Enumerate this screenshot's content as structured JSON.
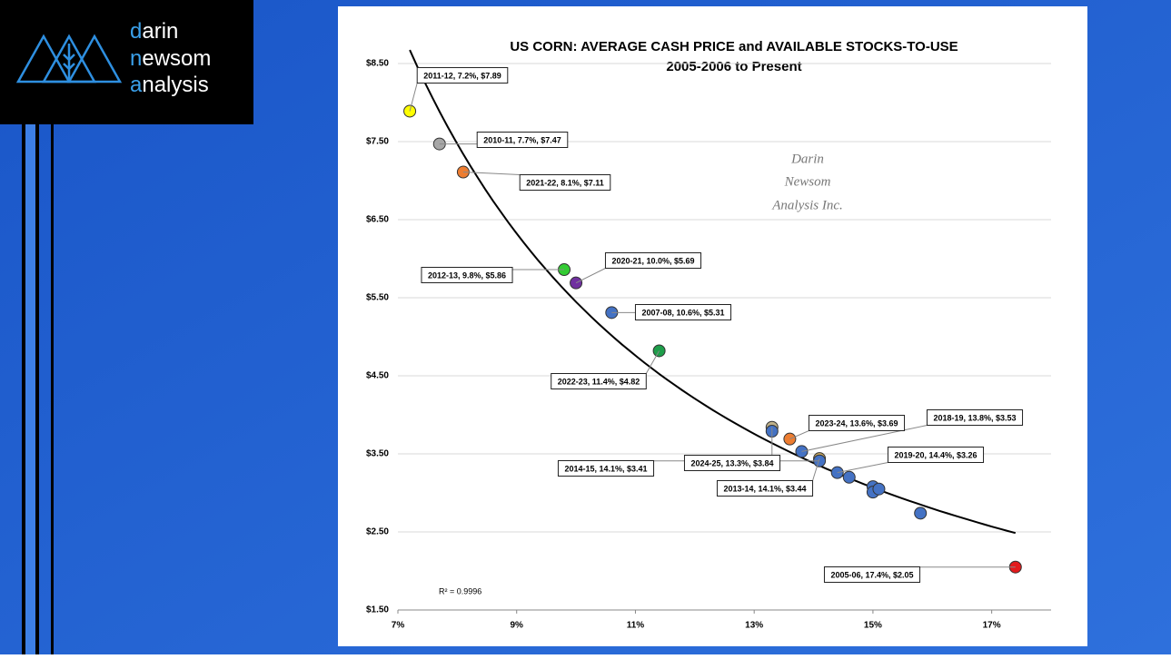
{
  "logo": {
    "lines": [
      "darin",
      "newsom",
      "analysis"
    ]
  },
  "chart_data": {
    "type": "scatter",
    "title": "US CORN: AVERAGE CASH PRICE and AVAILABLE STOCKS-TO-USE",
    "subtitle": "2005-2006 to Present",
    "watermark": [
      "Darin",
      "Newsom",
      "Analysis Inc."
    ],
    "annotation": "R² = 0.9996",
    "trendline": "power",
    "grid": true,
    "x": [
      17.4,
      10.6,
      7.7,
      7.2,
      9.8,
      14.1,
      14.1,
      13.8,
      14.4,
      10.0,
      8.1,
      11.4,
      13.6,
      13.3,
      13.3,
      14.6,
      15.0,
      15.0,
      15.1,
      15.8
    ],
    "values": [
      2.05,
      5.31,
      7.47,
      7.89,
      5.86,
      3.44,
      3.41,
      3.53,
      3.26,
      5.69,
      7.11,
      4.82,
      3.69,
      3.84,
      3.79,
      3.2,
      3.08,
      3.01,
      3.05,
      2.74
    ],
    "colors": [
      "#e31a1c",
      "#4472c4",
      "#a6a6a6",
      "#ffff00",
      "#33cc33",
      "#c9a860",
      "#4472c4",
      "#4472c4",
      "#4472c4",
      "#7030a0",
      "#ed7d31",
      "#1e9e4a",
      "#ed7d31",
      "#bfb18a",
      "#4472c4",
      "#4472c4",
      "#4472c4",
      "#4472c4",
      "#4472c4",
      "#4472c4"
    ],
    "labels": [
      "2005-06, 17.4%, $2.05",
      "2007-08, 10.6%, $5.31",
      "2010-11, 7.7%, $7.47",
      "2011-12, 7.2%, $7.89",
      "2012-13, 9.8%, $5.86",
      "2013-14, 14.1%, $3.44",
      "2014-15, 14.1%, $3.41",
      "2018-19, 13.8%, $3.53",
      "2019-20, 14.4%, $3.26",
      "2020-21, 10.0%, $5.69",
      "2021-22, 8.1%, $7.11",
      "2022-23, 11.4%, $4.82",
      "2023-24, 13.6%, $3.69",
      "2024-25, 13.3%, $3.84",
      null,
      null,
      null,
      null,
      null,
      null
    ],
    "xlim": [
      7,
      18
    ],
    "xticks": [
      {
        "value": 7,
        "label": "7%"
      },
      {
        "value": 9,
        "label": "9%"
      },
      {
        "value": 11,
        "label": "11%"
      },
      {
        "value": 13,
        "label": "13%"
      },
      {
        "value": 15,
        "label": "15%"
      },
      {
        "value": 17,
        "label": "17%"
      }
    ],
    "ylim": [
      1.5,
      8.5
    ],
    "yticks": [
      {
        "value": 1.5,
        "label": "$1.50"
      },
      {
        "value": 2.5,
        "label": "$2.50"
      },
      {
        "value": 3.5,
        "label": "$3.50"
      },
      {
        "value": 4.5,
        "label": "$4.50"
      },
      {
        "value": 5.5,
        "label": "$5.50"
      },
      {
        "value": 6.5,
        "label": "$6.50"
      },
      {
        "value": 7.5,
        "label": "$7.50"
      },
      {
        "value": 8.5,
        "label": "$8.50"
      }
    ]
  }
}
